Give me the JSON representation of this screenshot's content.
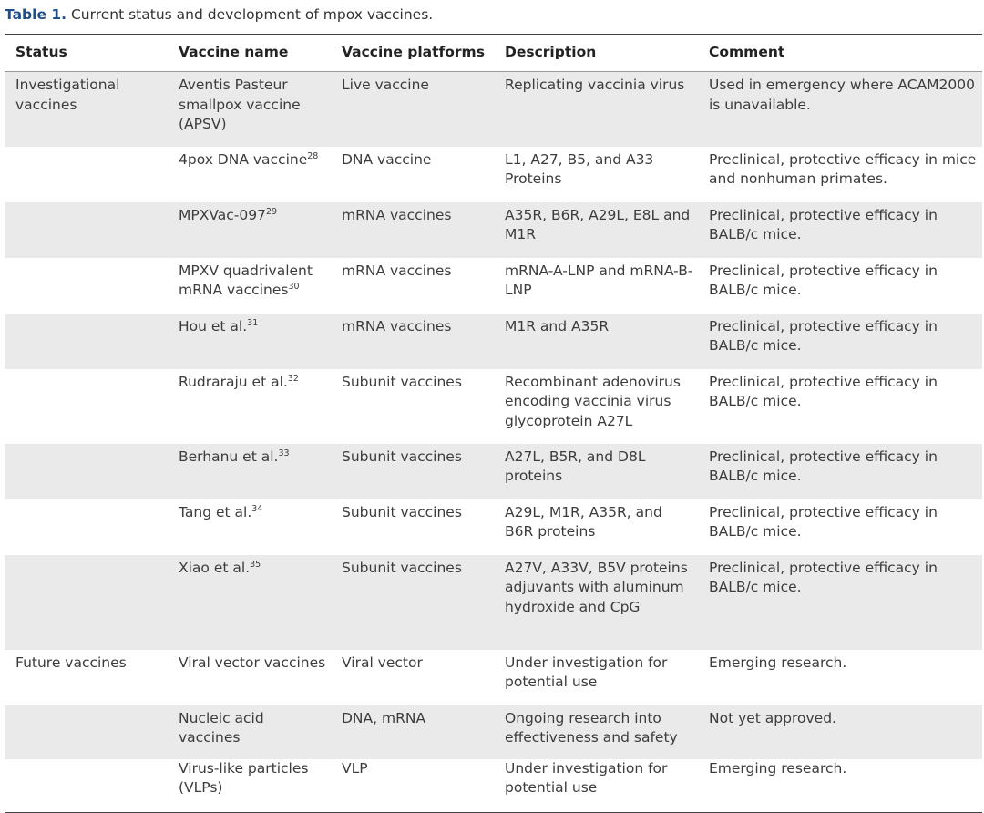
{
  "caption": {
    "label": "Table 1.",
    "text": "Current status and development of mpox vaccines."
  },
  "headers": [
    "Status",
    "Vaccine name",
    "Vaccine platforms",
    "Description",
    "Comment"
  ],
  "rows": [
    {
      "status": "Investigational vaccines",
      "name": "Aventis Pasteur smallpox vaccine (APSV)",
      "ref": "",
      "platform": "Live vaccine",
      "description": "Replicating vaccinia virus",
      "comment": "Used in emergency where ACAM2000 is unavailable."
    },
    {
      "status": "",
      "name": "4pox DNA vaccine",
      "ref": "28",
      "platform": "DNA vaccine",
      "description": "L1, A27, B5, and A33 Proteins",
      "comment": "Preclinical, protective efficacy in mice and nonhuman primates."
    },
    {
      "status": "",
      "name": "MPXVac-097",
      "ref": "29",
      "platform": "mRNA vaccines",
      "description": "A35R, B6R, A29L, E8L and M1R",
      "comment": "Preclinical, protective efficacy in BALB/c mice."
    },
    {
      "status": "",
      "name": "MPXV quadrivalent mRNA vaccines",
      "ref": "30",
      "platform": "mRNA vaccines",
      "description": "mRNA-A-LNP and mRNA-B-LNP",
      "comment": "Preclinical, protective efficacy in BALB/c mice."
    },
    {
      "status": "",
      "name": "Hou et al.",
      "ref": "31",
      "platform": "mRNA vaccines",
      "description": "M1R and A35R",
      "comment": "Preclinical, protective efficacy in BALB/c mice."
    },
    {
      "status": "",
      "name": "Rudraraju et al.",
      "ref": "32",
      "platform": "Subunit vaccines",
      "description": "Recombinant adenovirus encoding vaccinia virus glycoprotein A27L",
      "comment": "Preclinical, protective efficacy in BALB/c mice."
    },
    {
      "status": "",
      "name": "Berhanu et al.",
      "ref": "33",
      "platform": "Subunit vaccines",
      "description": "A27L, B5R, and D8L proteins",
      "comment": "Preclinical, protective efficacy in BALB/c mice."
    },
    {
      "status": "",
      "name": "Tang et al.",
      "ref": "34",
      "platform": "Subunit vaccines",
      "description": "A29L, M1R, A35R, and B6R proteins",
      "comment": "Preclinical, protective efficacy in BALB/c mice."
    },
    {
      "status": "",
      "name": "Xiao et al.",
      "ref": "35",
      "platform": "Subunit vaccines",
      "description": "A27V, A33V, B5V proteins adjuvants with aluminum hydroxide and CpG",
      "comment": "Preclinical, protective efficacy in BALB/c mice."
    },
    {
      "status": "Future vaccines",
      "name": "Viral vector vaccines",
      "ref": "",
      "platform": "Viral vector",
      "description": "Under investigation for potential use",
      "comment": "Emerging research."
    },
    {
      "status": "",
      "name": "Nucleic acid vaccines",
      "ref": "",
      "platform": "DNA, mRNA",
      "description": "Ongoing research into effectiveness and safety",
      "comment": "Not yet approved."
    },
    {
      "status": "",
      "name": "Virus-like particles (VLPs)",
      "ref": "",
      "platform": "VLP",
      "description": "Under investigation for potential use",
      "comment": "Emerging research."
    }
  ]
}
